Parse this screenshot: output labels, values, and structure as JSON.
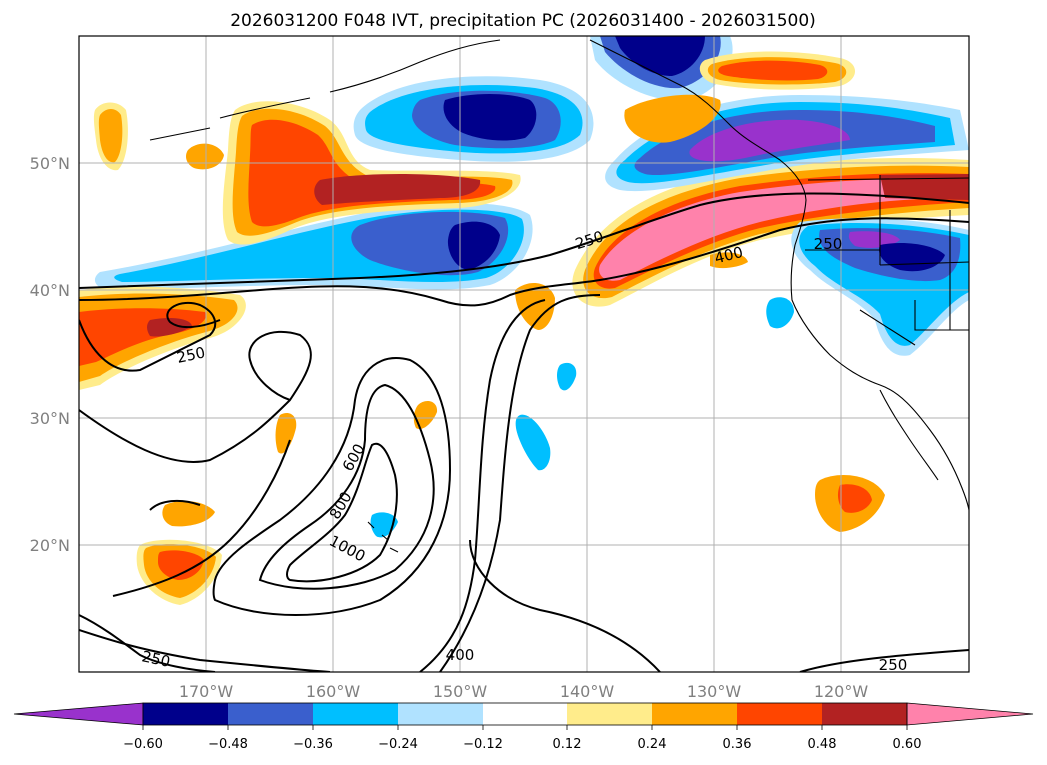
{
  "title": "2026031200 F048 IVT, precipitation PC (2026031400 - 2026031500)",
  "map": {
    "lat_labels": [
      "50°N",
      "40°N",
      "30°N",
      "20°N"
    ],
    "lon_labels": [
      "170°W",
      "160°W",
      "150°W",
      "140°W",
      "130°W",
      "120°W"
    ],
    "contour_labels": [
      "250",
      "400",
      "250",
      "250",
      "600",
      "800",
      "1000",
      "250",
      "400",
      "250"
    ]
  },
  "colorbar": {
    "ticks": [
      "−0.60",
      "−0.48",
      "−0.36",
      "−0.24",
      "−0.12",
      "0.12",
      "0.24",
      "0.36",
      "0.48",
      "0.60"
    ],
    "colors": [
      "#9932cc",
      "#00008b",
      "#3a5fcd",
      "#00bfff",
      "#b0e2ff",
      "#ffffff",
      "#ffec8b",
      "#ffa500",
      "#ff4500",
      "#b22222",
      "#ff82ab"
    ]
  },
  "colors": {
    "neg_extreme": "#9932cc",
    "neg_strong": "#00008b",
    "neg_mid": "#3a5fcd",
    "neg_weak": "#00bfff",
    "neg_faint": "#b0e2ff",
    "pos_faint": "#ffec8b",
    "pos_weak": "#ffa500",
    "pos_mid": "#ff4500",
    "pos_strong": "#b22222",
    "pos_extreme": "#ff82ab"
  }
}
